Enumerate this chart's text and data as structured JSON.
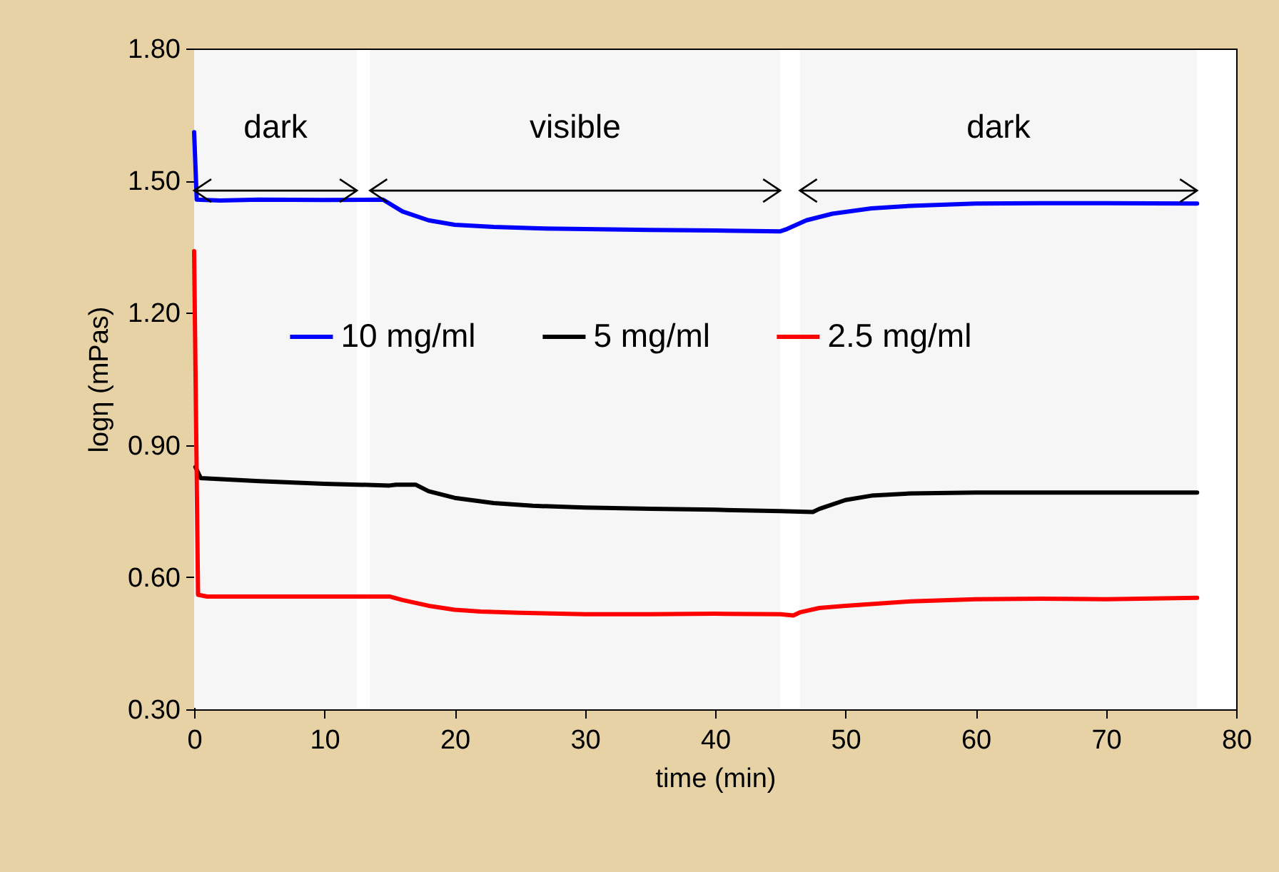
{
  "chart_data": {
    "type": "line",
    "xlabel": "time (min)",
    "ylabel": "logη (mPas)",
    "xlim": [
      0,
      80
    ],
    "xticks": [
      0,
      10,
      20,
      30,
      40,
      50,
      60,
      70,
      80
    ],
    "ylim": [
      0.3,
      1.8
    ],
    "yticks": [
      {
        "value": 0.3,
        "label": "0.30"
      },
      {
        "value": 0.6,
        "label": "0.60"
      },
      {
        "value": 0.9,
        "label": "0.90"
      },
      {
        "value": 1.2,
        "label": "1.20"
      },
      {
        "value": 1.5,
        "label": "1.50"
      },
      {
        "value": 1.8,
        "label": "1.80"
      }
    ],
    "grid": false,
    "legend": "center",
    "line_style": "solid",
    "marker": "none",
    "bands": [
      {
        "axis": "x",
        "from": 0,
        "to": 12.5,
        "label": "dark",
        "color": "#f6f6f6"
      },
      {
        "axis": "x",
        "from": 13.5,
        "to": 45,
        "label": "visible",
        "color": "#f6f6f6"
      },
      {
        "axis": "x",
        "from": 46.5,
        "to": 77,
        "label": "dark",
        "color": "#f6f6f6"
      }
    ],
    "series": [
      {
        "name": "10 mg/ml",
        "color": "#0000ff",
        "x": [
          0,
          0.2,
          2,
          5,
          10,
          14.5,
          16,
          18,
          20,
          23,
          26,
          30,
          35,
          40,
          45,
          45.5,
          47,
          49,
          52,
          55,
          60,
          65,
          70,
          77
        ],
        "values": [
          1.61,
          1.457,
          1.455,
          1.457,
          1.456,
          1.457,
          1.43,
          1.41,
          1.4,
          1.395,
          1.392,
          1.39,
          1.388,
          1.387,
          1.385,
          1.39,
          1.41,
          1.425,
          1.437,
          1.443,
          1.448,
          1.449,
          1.449,
          1.448
        ]
      },
      {
        "name": "5 mg/ml",
        "color": "#000000",
        "x": [
          0.1,
          0.5,
          5,
          10,
          15,
          15.5,
          17,
          18,
          20,
          23,
          26,
          30,
          35,
          40,
          45,
          47.5,
          48,
          50,
          52,
          55,
          60,
          65,
          70,
          77
        ],
        "values": [
          0.85,
          0.825,
          0.818,
          0.812,
          0.808,
          0.81,
          0.81,
          0.795,
          0.78,
          0.768,
          0.762,
          0.758,
          0.755,
          0.753,
          0.75,
          0.748,
          0.755,
          0.775,
          0.785,
          0.79,
          0.792,
          0.792,
          0.792,
          0.792
        ]
      },
      {
        "name": "2.5 mg/ml",
        "color": "#ff0000",
        "x": [
          0,
          0.3,
          1,
          5,
          10,
          15,
          16,
          18,
          20,
          22,
          25,
          30,
          35,
          40,
          45,
          46,
          46.5,
          48,
          50,
          55,
          60,
          65,
          70,
          77
        ],
        "values": [
          1.34,
          0.56,
          0.556,
          0.556,
          0.556,
          0.556,
          0.548,
          0.535,
          0.526,
          0.522,
          0.519,
          0.516,
          0.516,
          0.517,
          0.516,
          0.513,
          0.52,
          0.53,
          0.535,
          0.545,
          0.55,
          0.551,
          0.55,
          0.553
        ]
      }
    ]
  }
}
